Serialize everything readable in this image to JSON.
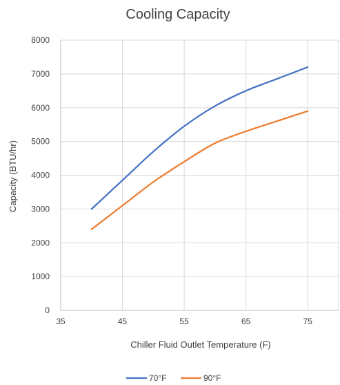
{
  "chart_data": {
    "type": "line",
    "title": "Cooling Capacity",
    "xlabel": "Chiller Fluid Outlet Temperature (F)",
    "ylabel": "Capacity (BTU/hr)",
    "xlim": [
      35,
      80
    ],
    "ylim": [
      0,
      8000
    ],
    "x_ticks": [
      35,
      45,
      55,
      65,
      75
    ],
    "y_ticks": [
      0,
      1000,
      2000,
      3000,
      4000,
      5000,
      6000,
      7000,
      8000
    ],
    "grid": true,
    "legend_position": "bottom",
    "series": [
      {
        "name": "70°F",
        "color": "#4472C4",
        "x": [
          40,
          45,
          50,
          55,
          60,
          65,
          70,
          75
        ],
        "y": [
          3000,
          3850,
          4700,
          5450,
          6050,
          6500,
          6850,
          7200
        ]
      },
      {
        "name": "90°F",
        "color": "#ED7D31",
        "x": [
          40,
          45,
          50,
          55,
          60,
          65,
          70,
          75
        ],
        "y": [
          2400,
          3100,
          3800,
          4400,
          4950,
          5300,
          5600,
          5900
        ]
      }
    ]
  }
}
